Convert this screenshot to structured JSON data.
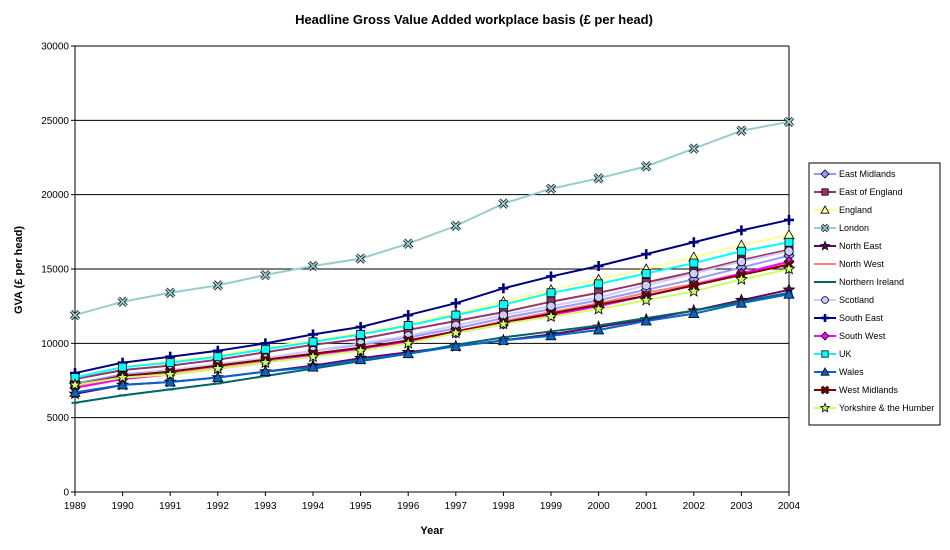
{
  "chart_data": {
    "type": "line",
    "title": "Headline Gross Value Added workplace basis (£ per head)",
    "xlabel": "Year",
    "ylabel": "GVA (£ per head)",
    "ylim": [
      0,
      30000
    ],
    "yticks": [
      "0",
      "5000",
      "10000",
      "15000",
      "20000",
      "25000",
      "30000"
    ],
    "grid": "horizontal",
    "legend_position": "right",
    "x": [
      "1989",
      "1990",
      "1991",
      "1992",
      "1993",
      "1994",
      "1995",
      "1996",
      "1997",
      "1998",
      "1999",
      "2000",
      "2001",
      "2002",
      "2003",
      "2004"
    ],
    "series": [
      {
        "name": "East Midlands",
        "color": "#9999ff",
        "marker": "diamond",
        "values": [
          7300,
          7900,
          8200,
          8600,
          9000,
          9500,
          9900,
          10400,
          11000,
          11700,
          12300,
          12900,
          13600,
          14300,
          15100,
          15900
        ]
      },
      {
        "name": "East of England",
        "color": "#993366",
        "marker": "square",
        "values": [
          7600,
          8200,
          8500,
          8900,
          9400,
          9900,
          10300,
          10900,
          11500,
          12100,
          12800,
          13400,
          14100,
          14800,
          15600,
          16300
        ]
      },
      {
        "name": "England",
        "color": "#ffff99",
        "marker": "triangle",
        "values": [
          7700,
          8400,
          8800,
          9200,
          9700,
          10200,
          10700,
          11300,
          12000,
          12800,
          13600,
          14300,
          15000,
          15800,
          16600,
          17300
        ]
      },
      {
        "name": "London",
        "color": "#99cccc",
        "marker": "x",
        "values": [
          11900,
          12800,
          13400,
          13900,
          14600,
          15200,
          15700,
          16700,
          17900,
          19400,
          20400,
          21100,
          21900,
          23100,
          24300,
          24900
        ]
      },
      {
        "name": "North East",
        "color": "#660066",
        "marker": "star",
        "values": [
          6600,
          7200,
          7400,
          7700,
          8100,
          8500,
          9000,
          9400,
          9800,
          10200,
          10600,
          11100,
          11600,
          12200,
          12900,
          13600
        ]
      },
      {
        "name": "North West",
        "color": "#ff8080",
        "marker": "dash",
        "values": [
          7100,
          7700,
          8000,
          8400,
          8800,
          9200,
          9700,
          10200,
          10800,
          11500,
          12100,
          12700,
          13400,
          14000,
          14700,
          15400
        ]
      },
      {
        "name": "Northern Ireland",
        "color": "#006666",
        "marker": "dash",
        "values": [
          6000,
          6500,
          6900,
          7300,
          7800,
          8300,
          8800,
          9300,
          9900,
          10400,
          10800,
          11200,
          11700,
          12200,
          12800,
          13400
        ]
      },
      {
        "name": "Scotland",
        "color": "#ccccff",
        "marker": "circle",
        "values": [
          7200,
          7800,
          8200,
          8600,
          9000,
          9500,
          10000,
          10500,
          11200,
          11900,
          12500,
          13100,
          13900,
          14700,
          15500,
          16200
        ]
      },
      {
        "name": "South East",
        "color": "#000080",
        "marker": "plus",
        "values": [
          8000,
          8700,
          9100,
          9500,
          10000,
          10600,
          11100,
          11900,
          12700,
          13700,
          14500,
          15200,
          16000,
          16800,
          17600,
          18300
        ]
      },
      {
        "name": "South West",
        "color": "#ff00ff",
        "marker": "diamond",
        "values": [
          7000,
          7600,
          7900,
          8300,
          8700,
          9200,
          9600,
          10100,
          10700,
          11300,
          11900,
          12500,
          13200,
          13900,
          14700,
          15500
        ]
      },
      {
        "name": "UK",
        "color": "#00ffff",
        "marker": "square",
        "values": [
          7700,
          8400,
          8700,
          9100,
          9600,
          10100,
          10600,
          11200,
          11900,
          12600,
          13400,
          14000,
          14700,
          15400,
          16200,
          16800
        ]
      },
      {
        "name": "Wales",
        "color": "#0066cc",
        "marker": "triangle",
        "values": [
          6700,
          7200,
          7400,
          7700,
          8100,
          8400,
          8900,
          9300,
          9800,
          10200,
          10500,
          10900,
          11500,
          12000,
          12700,
          13300
        ]
      },
      {
        "name": "West Midlands",
        "color": "#800000",
        "marker": "x",
        "values": [
          7200,
          7800,
          8100,
          8500,
          8900,
          9300,
          9700,
          10200,
          10800,
          11400,
          12000,
          12600,
          13200,
          13900,
          14600,
          15300
        ]
      },
      {
        "name": "Yorkshire & the Humber",
        "color": "#ccff66",
        "marker": "star",
        "values": [
          7200,
          7700,
          7900,
          8300,
          8700,
          9100,
          9500,
          10000,
          10700,
          11300,
          11800,
          12300,
          12900,
          13500,
          14300,
          15000
        ]
      }
    ]
  }
}
